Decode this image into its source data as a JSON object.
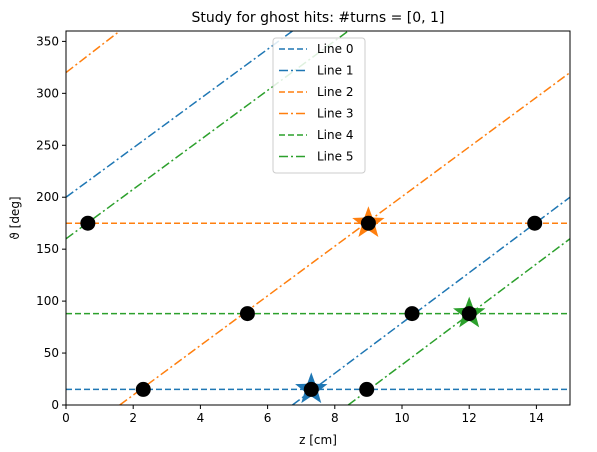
{
  "chart_data": {
    "type": "line",
    "title": "Study for ghost hits: #turns = [0, 1]",
    "xlabel": "z [cm]",
    "ylabel": "ϑ [deg]",
    "xlim": [
      0,
      15
    ],
    "ylim": [
      0,
      360
    ],
    "xticks": [
      0,
      2,
      4,
      6,
      8,
      10,
      12,
      14
    ],
    "yticks": [
      0,
      50,
      100,
      150,
      200,
      250,
      300,
      350
    ],
    "grid": false,
    "legend_position": "upper-center",
    "series": [
      {
        "name": "Line 0",
        "color": "#1f77b4",
        "style": "dashed",
        "x": [
          0,
          15
        ],
        "y": [
          15,
          15
        ]
      },
      {
        "name": "Line 1",
        "color": "#1f77b4",
        "style": "dashdot",
        "x": [
          0,
          6.74,
          15
        ],
        "y": [
          200,
          360,
          200
        ]
      },
      {
        "name": "Line 2",
        "color": "#ff7f0e",
        "style": "dashed",
        "x": [
          0,
          15
        ],
        "y": [
          175,
          175
        ]
      },
      {
        "name": "Line 3",
        "color": "#ff7f0e",
        "style": "dashdot",
        "x": [
          0,
          1.6,
          15
        ],
        "y": [
          320,
          360,
          320
        ]
      },
      {
        "name": "Line 4",
        "color": "#2ca02c",
        "style": "dashed",
        "x": [
          0,
          15
        ],
        "y": [
          88,
          88
        ]
      },
      {
        "name": "Line 5",
        "color": "#2ca02c",
        "style": "dashdot",
        "x": [
          0,
          8.4,
          15
        ],
        "y": [
          160,
          360,
          160
        ]
      }
    ],
    "wrap_segments": [
      {
        "series": "Line 1",
        "x": [
          0,
          6.74
        ],
        "y": [
          200,
          360
        ]
      },
      {
        "series": "Line 1",
        "x": [
          6.74,
          15
        ],
        "y": [
          0,
          200
        ]
      },
      {
        "series": "Line 3",
        "x": [
          0,
          1.6
        ],
        "y": [
          320,
          360
        ]
      },
      {
        "series": "Line 3",
        "x": [
          1.6,
          15
        ],
        "y": [
          0,
          320
        ]
      },
      {
        "series": "Line 5",
        "x": [
          0,
          8.4
        ],
        "y": [
          160,
          360
        ]
      },
      {
        "series": "Line 5",
        "x": [
          8.4,
          15
        ],
        "y": [
          0,
          160
        ]
      }
    ],
    "points": [
      {
        "x": 0.65,
        "y": 175
      },
      {
        "x": 9.0,
        "y": 175
      },
      {
        "x": 13.95,
        "y": 175
      },
      {
        "x": 5.4,
        "y": 88
      },
      {
        "x": 10.3,
        "y": 88
      },
      {
        "x": 12.0,
        "y": 88
      },
      {
        "x": 2.3,
        "y": 15
      },
      {
        "x": 7.3,
        "y": 15
      },
      {
        "x": 8.95,
        "y": 15
      }
    ],
    "stars": [
      {
        "x": 9.0,
        "y": 175,
        "color": "#ff7f0e"
      },
      {
        "x": 12.0,
        "y": 88,
        "color": "#2ca02c"
      },
      {
        "x": 7.3,
        "y": 15,
        "color": "#1f77b4"
      }
    ]
  }
}
